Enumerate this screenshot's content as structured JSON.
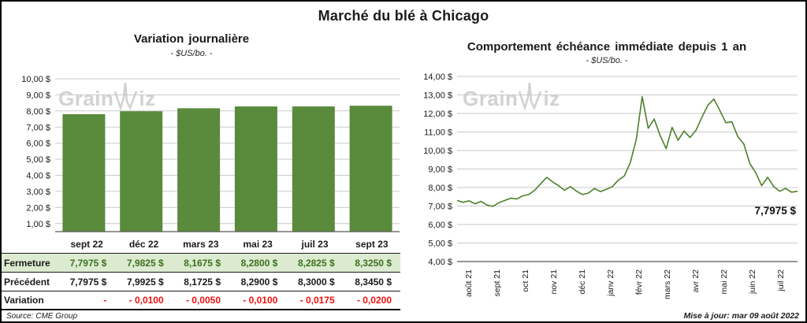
{
  "page_title": "Marché du blé à Chicago",
  "watermark": {
    "full": "GrainWiz",
    "pre": "Grain",
    "post": "iz"
  },
  "colors": {
    "bar_fill": "#5a8a3c",
    "line_stroke": "#4d7f2a",
    "gridline": "#c9c9c9",
    "axis": "#595959",
    "fermeture_bg": "#dcebd0",
    "fermeture_text": "#3c701e",
    "variation_text": "#ee1111"
  },
  "chart_data": [
    {
      "type": "bar",
      "title": "Variation journalière",
      "subtitle": "- $US/bo. -",
      "categories": [
        "sept 22",
        "déc 22",
        "mars 23",
        "mai 23",
        "juil 23",
        "sept 23"
      ],
      "values": [
        7.7975,
        7.9825,
        8.1675,
        8.28,
        8.2825,
        8.325
      ],
      "ylim": [
        0.5,
        10
      ],
      "ytick_labels": [
        "10,00 $",
        "9,00 $",
        "8,00 $",
        "7,00 $",
        "6,00 $",
        "5,00 $",
        "4,00 $",
        "3,00 $",
        "2,00 $",
        "1,00 $"
      ],
      "grid": true,
      "legend": "none"
    },
    {
      "type": "line",
      "title": "Comportement échéance immédiate depuis 1 an",
      "subtitle": "- $US/bo. -",
      "x_tick_labels": [
        "août 21",
        "sept 21",
        "oct 21",
        "nov 21",
        "déc 21",
        "janv 22",
        "févr 22",
        "mars 22",
        "avr 22",
        "mai 22",
        "juin 22",
        "juil 22"
      ],
      "values": [
        7.3,
        7.2,
        7.28,
        7.12,
        7.25,
        7.05,
        6.98,
        7.18,
        7.3,
        7.42,
        7.38,
        7.55,
        7.62,
        7.85,
        8.2,
        8.55,
        8.3,
        8.1,
        7.85,
        8.05,
        7.8,
        7.62,
        7.7,
        7.95,
        7.78,
        7.9,
        8.05,
        8.4,
        8.62,
        9.35,
        10.6,
        12.9,
        11.2,
        11.7,
        10.8,
        10.1,
        11.25,
        10.55,
        11.05,
        10.7,
        11.1,
        11.8,
        12.45,
        12.78,
        12.15,
        11.5,
        11.55,
        10.75,
        10.35,
        9.3,
        8.8,
        8.1,
        8.55,
        8.05,
        7.8,
        7.95,
        7.75,
        7.7975
      ],
      "ylim": [
        4,
        14
      ],
      "ytick_labels": [
        "14,00 $",
        "13,00 $",
        "12,00 $",
        "11,00 $",
        "10,00 $",
        "9,00 $",
        "8,00 $",
        "7,00 $",
        "6,00 $",
        "5,00 $",
        "4,00 $"
      ],
      "end_annotation": "7,7975 $",
      "grid": true,
      "legend": "none"
    }
  ],
  "table": {
    "columns": [
      "sept 22",
      "déc 22",
      "mars 23",
      "mai 23",
      "juil 23",
      "sept 23"
    ],
    "rows": [
      {
        "label": "Fermeture",
        "values": [
          "7,7975 $",
          "7,9825 $",
          "8,1675 $",
          "8,2800 $",
          "8,2825 $",
          "8,3250 $"
        ]
      },
      {
        "label": "Précédent",
        "values": [
          "7,7975 $",
          "7,9925 $",
          "8,1725 $",
          "8,2900 $",
          "8,3000 $",
          "8,3450 $"
        ]
      },
      {
        "label": "Variation",
        "values": [
          "-",
          "- 0,0100",
          "- 0,0050",
          "- 0,0100",
          "- 0,0175",
          "- 0,0200"
        ]
      }
    ]
  },
  "footer": {
    "source": "Source: CME Group",
    "updated": "Mise à jour: mar 09 août 2022"
  }
}
